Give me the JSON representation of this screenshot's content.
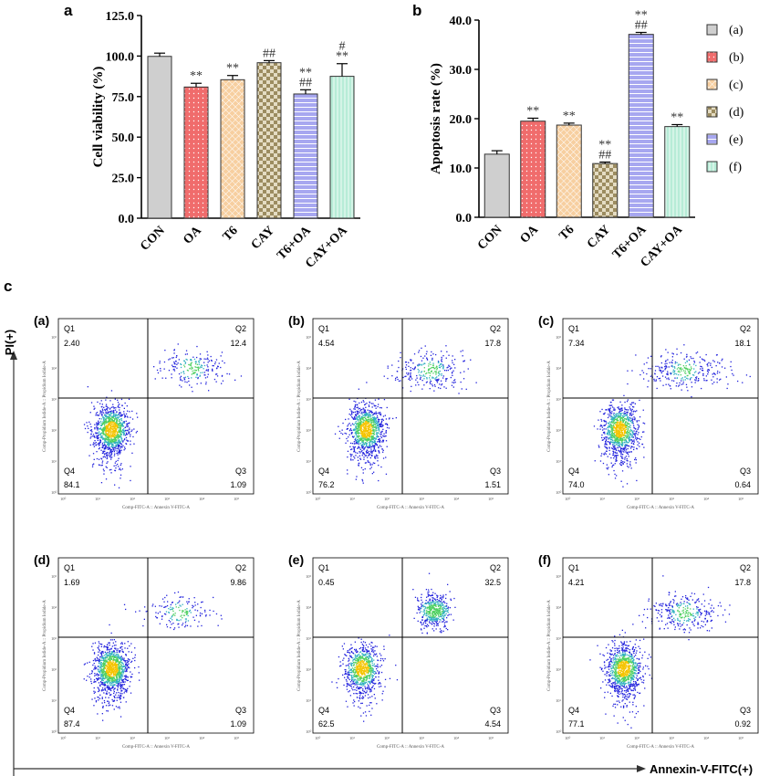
{
  "panels": {
    "a": "a",
    "b": "b",
    "c": "c"
  },
  "chart_data": [
    {
      "type": "bar",
      "panel": "a",
      "ylabel": "Cell viability (%)",
      "categories": [
        "CON",
        "OA",
        "T6",
        "CAY",
        "T6+OA",
        "CAY+OA"
      ],
      "values": [
        99.8,
        80.9,
        85.4,
        95.9,
        76.6,
        87.5
      ],
      "errors": [
        2.0,
        2.3,
        2.6,
        1.3,
        2.6,
        7.8
      ],
      "yticks": [
        "0.0",
        "25.0",
        "50.0",
        "75.0",
        "100.0",
        "125.0"
      ],
      "ylim": [
        0,
        125
      ],
      "significance": [
        [
          ""
        ],
        [
          "**"
        ],
        [
          "**"
        ],
        [
          "##"
        ],
        [
          "**",
          "##"
        ],
        [
          "#",
          "**"
        ]
      ]
    },
    {
      "type": "bar",
      "panel": "b",
      "ylabel": "Apoptosis rate (%)",
      "categories": [
        "CON",
        "OA",
        "T6",
        "CAY",
        "T6+OA",
        "CAY+OA"
      ],
      "values": [
        12.8,
        19.5,
        18.7,
        10.9,
        37.1,
        18.4
      ],
      "errors": [
        0.7,
        0.6,
        0.4,
        0.3,
        0.4,
        0.4
      ],
      "yticks": [
        "0.0",
        "10.0",
        "20.0",
        "30.0",
        "40.0"
      ],
      "ylim": [
        0,
        40
      ],
      "significance": [
        [
          ""
        ],
        [
          "**"
        ],
        [
          "**"
        ],
        [
          "**",
          "##"
        ],
        [
          "**",
          "##"
        ],
        [
          "**"
        ]
      ]
    }
  ],
  "legend": [
    "(a)",
    "(b)",
    "(c)",
    "(d)",
    "(e)",
    "(f)"
  ],
  "colors": {
    "CON": "#cfcfcf",
    "OA": "#f06c6c",
    "T6": "#f7cfa0",
    "CAY": "#b9a87a",
    "T6+OA": "#a7a7f0",
    "CAY+OA": "#b7ecd7"
  },
  "flow": {
    "y_axis_label": "PI(+)",
    "x_axis_label": "Annexin-V-FITC(+)",
    "x_inner_label": "Comp-FITC-A :: Annexin V-FITC-A",
    "y_inner_label": "Comp-Propidium Iodide-A :: Propidium Iodide-A",
    "quad_names": {
      "q1": "Q1",
      "q2": "Q2",
      "q3": "Q3",
      "q4": "Q4"
    },
    "plots": [
      {
        "id": "(a)",
        "q1": "2.40",
        "q2": "12.4",
        "q3": "1.09",
        "q4": "84.1"
      },
      {
        "id": "(b)",
        "q1": "4.54",
        "q2": "17.8",
        "q3": "1.51",
        "q4": "76.2"
      },
      {
        "id": "(c)",
        "q1": "7.34",
        "q2": "18.1",
        "q3": "0.64",
        "q4": "74.0"
      },
      {
        "id": "(d)",
        "q1": "1.69",
        "q2": "9.86",
        "q3": "1.09",
        "q4": "87.4"
      },
      {
        "id": "(e)",
        "q1": "0.45",
        "q2": "32.5",
        "q3": "4.54",
        "q4": "62.5"
      },
      {
        "id": "(f)",
        "q1": "4.21",
        "q2": "17.8",
        "q3": "0.92",
        "q4": "77.1"
      }
    ]
  }
}
